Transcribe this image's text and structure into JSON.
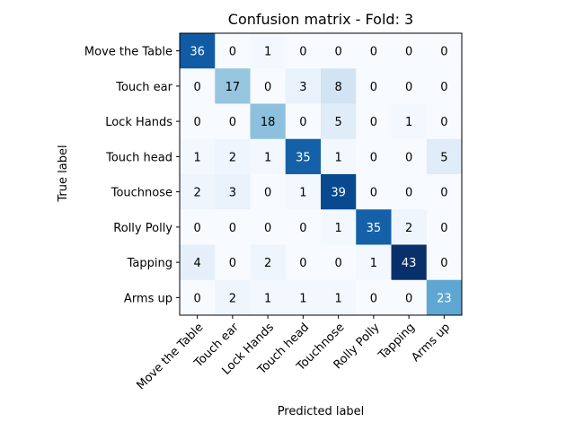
{
  "chart_data": {
    "type": "heatmap",
    "title": "Confusion matrix - Fold: 3",
    "xlabel": "Predicted label",
    "ylabel": "True label",
    "x_categories": [
      "Move the Table",
      "Touch ear",
      "Lock Hands",
      "Touch head",
      "Touchnose",
      "Rolly Polly",
      "Tapping",
      "Arms up"
    ],
    "y_categories": [
      "Move the Table",
      "Touch ear",
      "Lock Hands",
      "Touch head",
      "Touchnose",
      "Rolly Polly",
      "Tapping",
      "Arms up"
    ],
    "matrix": [
      [
        36,
        0,
        1,
        0,
        0,
        0,
        0,
        0
      ],
      [
        0,
        17,
        0,
        3,
        8,
        0,
        0,
        0
      ],
      [
        0,
        0,
        18,
        0,
        5,
        0,
        1,
        0
      ],
      [
        1,
        2,
        1,
        35,
        1,
        0,
        0,
        5
      ],
      [
        2,
        3,
        0,
        1,
        39,
        0,
        0,
        0
      ],
      [
        0,
        0,
        0,
        0,
        1,
        35,
        2,
        0
      ],
      [
        4,
        0,
        2,
        0,
        0,
        1,
        43,
        0
      ],
      [
        0,
        2,
        1,
        1,
        1,
        0,
        0,
        23
      ]
    ],
    "colormap": "Blues",
    "vmin": 0,
    "vmax": 43
  }
}
